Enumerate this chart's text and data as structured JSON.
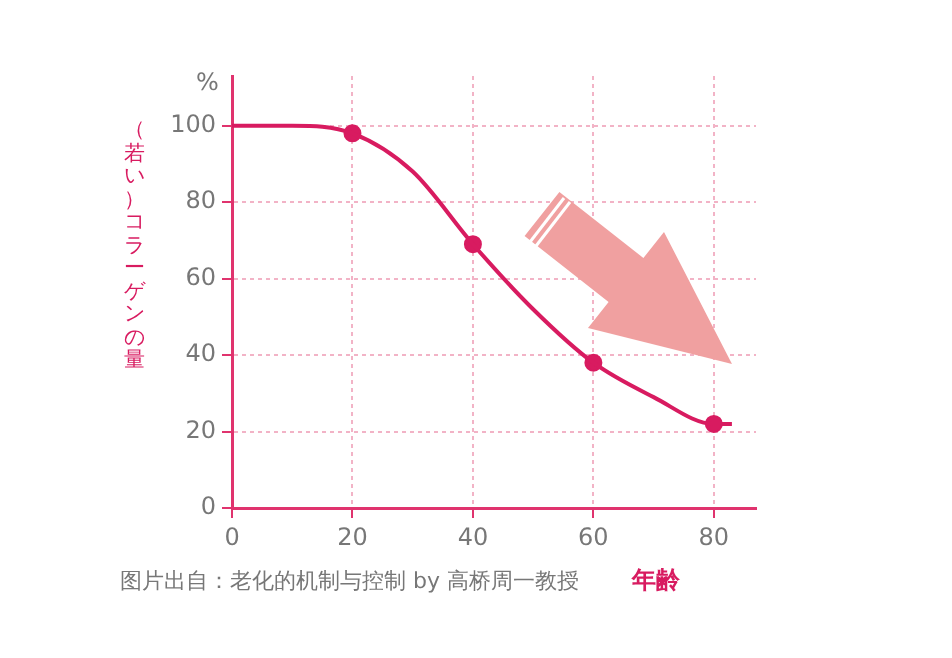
{
  "chart_data": {
    "type": "line",
    "ylabel": "（若い）コラーゲンの量",
    "xlabel": "年齢",
    "annotations": [
      "%",
      "图片出自：老化的机制与控制 by 高桥周一教授"
    ],
    "xlim": [
      0,
      87
    ],
    "xticks": [
      0,
      20,
      40,
      60,
      80
    ],
    "ylim": [
      0,
      113
    ],
    "yticks": [
      0,
      20,
      40,
      60,
      80,
      100
    ],
    "grid": true,
    "legend": false,
    "line_style": "solid",
    "series": [
      {
        "type": "line",
        "x": [
          0,
          10,
          20,
          30,
          40,
          50,
          60,
          70,
          80,
          83
        ],
        "values": [
          100,
          100,
          98,
          88,
          69,
          52,
          38,
          29,
          22,
          22
        ],
        "color": "#d81b60",
        "marker": "none"
      },
      {
        "type": "scatter",
        "x": [
          20,
          40,
          60,
          80
        ],
        "values": [
          98,
          69,
          38,
          22
        ],
        "color": "#d81b60",
        "marker": "circle"
      }
    ]
  }
}
